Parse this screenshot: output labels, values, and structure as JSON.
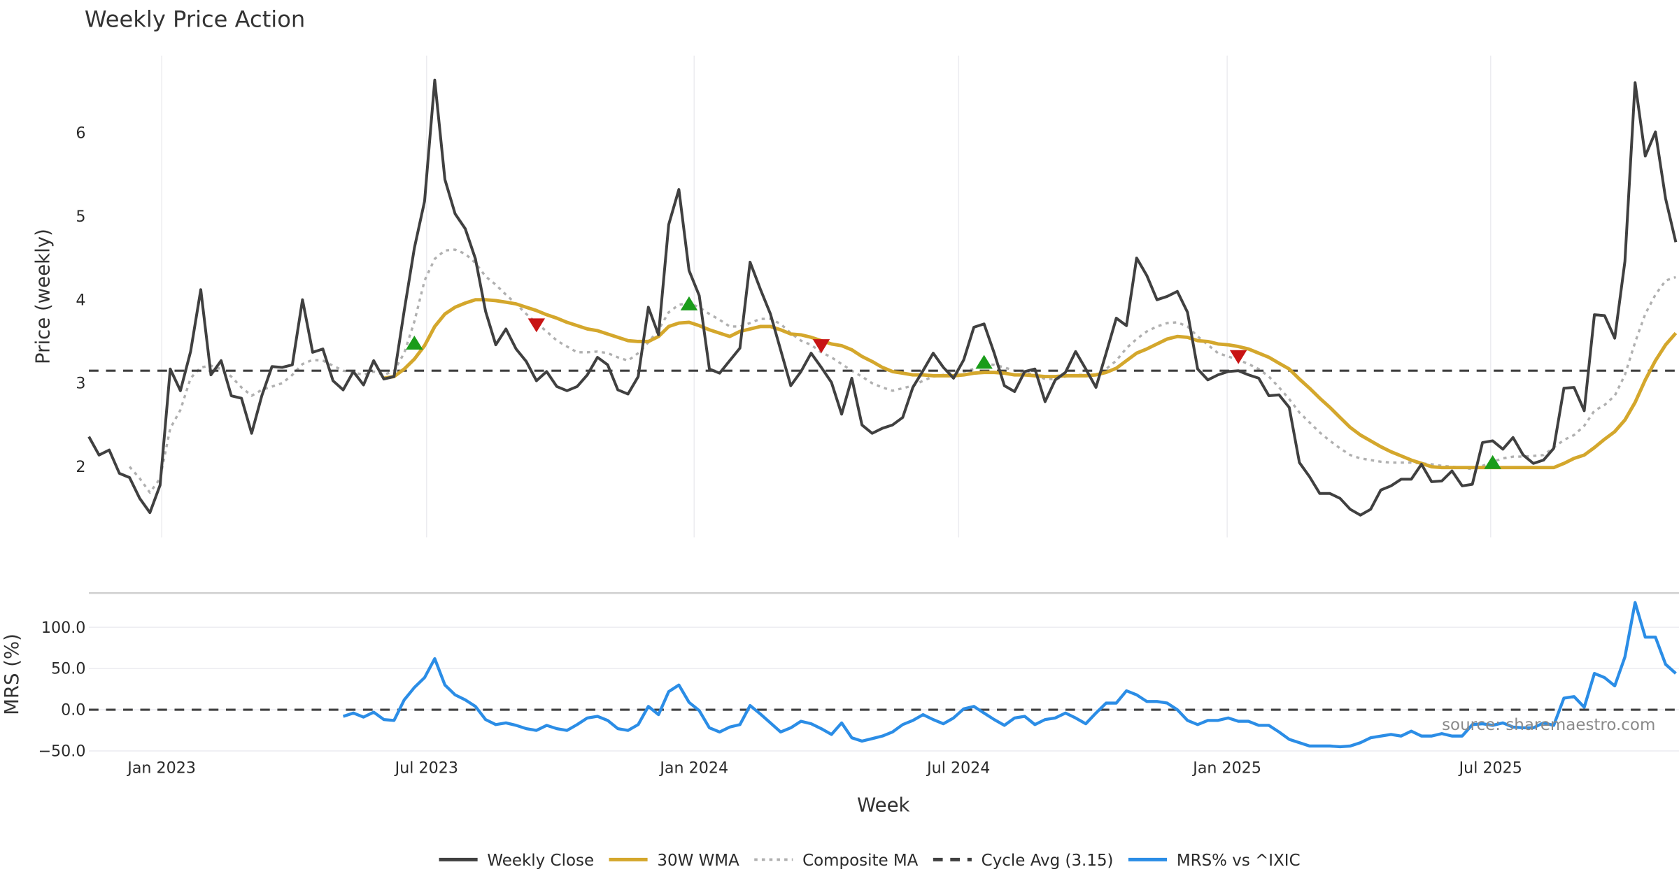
{
  "chart_data": {
    "type": "line",
    "title": "Weekly Price Action",
    "xlabel": "Week",
    "x_ticks": [
      {
        "label": "Jan 2023",
        "week_index": 7.16
      },
      {
        "label": "Jul 2023",
        "week_index": 33.2
      },
      {
        "label": "Jan 2024",
        "week_index": 59.5
      },
      {
        "label": "Jul 2024",
        "week_index": 85.5
      },
      {
        "label": "Jan 2025",
        "week_index": 111.9
      },
      {
        "label": "Jul 2025",
        "week_index": 137.8
      }
    ],
    "x_range": [
      0,
      156.3
    ],
    "panels": [
      {
        "id": "price",
        "ylabel": "Price (weekly)",
        "ylim": [
          1.2,
          6.85
        ],
        "y_ticks": [
          "2",
          "3",
          "4",
          "5",
          "6"
        ],
        "y_tick_values": [
          2,
          3,
          4,
          5,
          6
        ],
        "grid": "vertical",
        "series": [
          {
            "name": "Weekly Close",
            "color": "#404040",
            "style": "solid",
            "start_index": 0,
            "values": [
              2.36,
              2.14,
              2.2,
              1.92,
              1.87,
              1.62,
              1.45,
              1.78,
              3.17,
              2.91,
              3.38,
              4.12,
              3.1,
              3.27,
              2.85,
              2.82,
              2.4,
              2.85,
              3.2,
              3.19,
              3.22,
              4.0,
              3.37,
              3.41,
              3.03,
              2.92,
              3.14,
              2.98,
              3.27,
              3.05,
              3.08,
              3.87,
              4.62,
              5.18,
              6.63,
              5.44,
              5.03,
              4.85,
              4.49,
              3.86,
              3.46,
              3.65,
              3.41,
              3.26,
              3.03,
              3.14,
              2.96,
              2.91,
              2.96,
              3.1,
              3.31,
              3.22,
              2.92,
              2.87,
              3.08,
              3.91,
              3.58,
              4.9,
              5.32,
              4.35,
              4.05,
              3.17,
              3.12,
              3.27,
              3.42,
              4.45,
              4.13,
              3.83,
              3.4,
              2.97,
              3.14,
              3.36,
              3.19,
              3.01,
              2.63,
              3.06,
              2.5,
              2.4,
              2.46,
              2.5,
              2.59,
              2.95,
              3.15,
              3.36,
              3.19,
              3.06,
              3.28,
              3.67,
              3.71,
              3.36,
              2.97,
              2.9,
              3.14,
              3.17,
              2.78,
              3.04,
              3.13,
              3.38,
              3.17,
              2.95,
              3.36,
              3.78,
              3.69,
              4.5,
              4.29,
              4.0,
              4.04,
              4.1,
              3.85,
              3.17,
              3.04,
              3.1,
              3.14,
              3.15,
              3.1,
              3.06,
              2.85,
              2.86,
              2.71,
              2.05,
              1.88,
              1.68,
              1.68,
              1.62,
              1.49,
              1.42,
              1.49,
              1.72,
              1.77,
              1.85,
              1.85,
              2.03,
              1.82,
              1.83,
              1.95,
              1.77,
              1.79,
              2.29,
              2.31,
              2.21,
              2.35,
              2.14,
              2.04,
              2.08,
              2.22,
              2.94,
              2.95,
              2.67,
              3.82,
              3.81,
              3.54,
              4.46,
              6.6,
              5.72,
              6.01,
              5.21,
              4.69
            ]
          },
          {
            "name": "30W WMA",
            "color": "#d4a72c",
            "style": "solid",
            "start_index": 29,
            "values": [
              3.06,
              3.08,
              3.17,
              3.29,
              3.45,
              3.68,
              3.83,
              3.91,
              3.96,
              4.0,
              4.0,
              3.99,
              3.97,
              3.95,
              3.91,
              3.87,
              3.82,
              3.78,
              3.73,
              3.69,
              3.65,
              3.63,
              3.59,
              3.55,
              3.51,
              3.5,
              3.5,
              3.56,
              3.68,
              3.72,
              3.73,
              3.69,
              3.64,
              3.6,
              3.56,
              3.62,
              3.65,
              3.68,
              3.68,
              3.64,
              3.59,
              3.58,
              3.55,
              3.51,
              3.47,
              3.45,
              3.4,
              3.32,
              3.26,
              3.19,
              3.14,
              3.12,
              3.1,
              3.1,
              3.09,
              3.09,
              3.09,
              3.1,
              3.12,
              3.13,
              3.13,
              3.12,
              3.1,
              3.1,
              3.09,
              3.08,
              3.08,
              3.09,
              3.09,
              3.09,
              3.1,
              3.13,
              3.18,
              3.27,
              3.36,
              3.41,
              3.47,
              3.53,
              3.56,
              3.55,
              3.51,
              3.5,
              3.47,
              3.46,
              3.44,
              3.41,
              3.36,
              3.31,
              3.24,
              3.17,
              3.05,
              2.94,
              2.82,
              2.71,
              2.59,
              2.47,
              2.38,
              2.31,
              2.24,
              2.18,
              2.13,
              2.08,
              2.04,
              2.0,
              1.99,
              1.99,
              1.99,
              1.99,
              1.99,
              1.99,
              1.99,
              1.99,
              1.99,
              1.99,
              1.99,
              1.99,
              2.04,
              2.1,
              2.14,
              2.23,
              2.33,
              2.42,
              2.56,
              2.77,
              3.04,
              3.27,
              3.46,
              3.6
            ]
          },
          {
            "name": "Composite MA",
            "color": "#b0b0b0",
            "style": "dotted",
            "start_index": 4,
            "values": [
              2.0,
              1.86,
              1.69,
              1.86,
              2.46,
              2.68,
              3.06,
              3.19,
              3.21,
              3.17,
              3.08,
              2.95,
              2.85,
              2.92,
              2.96,
              3.0,
              3.1,
              3.23,
              3.28,
              3.27,
              3.21,
              3.15,
              3.13,
              3.1,
              3.14,
              3.1,
              3.15,
              3.36,
              3.74,
              4.23,
              4.49,
              4.59,
              4.6,
              4.55,
              4.44,
              4.28,
              4.18,
              4.06,
              3.95,
              3.83,
              3.72,
              3.62,
              3.51,
              3.44,
              3.37,
              3.37,
              3.38,
              3.36,
              3.31,
              3.27,
              3.36,
              3.49,
              3.64,
              3.85,
              3.94,
              3.96,
              3.91,
              3.83,
              3.76,
              3.68,
              3.68,
              3.72,
              3.77,
              3.77,
              3.71,
              3.6,
              3.51,
              3.46,
              3.37,
              3.31,
              3.23,
              3.15,
              3.08,
              3.0,
              2.95,
              2.91,
              2.94,
              2.97,
              3.03,
              3.08,
              3.1,
              3.13,
              3.14,
              3.17,
              3.23,
              3.22,
              3.19,
              3.15,
              3.13,
              3.1,
              3.05,
              3.05,
              3.08,
              3.1,
              3.1,
              3.1,
              3.17,
              3.27,
              3.42,
              3.53,
              3.62,
              3.68,
              3.72,
              3.73,
              3.68,
              3.56,
              3.46,
              3.36,
              3.32,
              3.28,
              3.23,
              3.17,
              3.08,
              2.95,
              2.81,
              2.65,
              2.53,
              2.41,
              2.31,
              2.22,
              2.14,
              2.1,
              2.08,
              2.06,
              2.05,
              2.05,
              2.05,
              2.04,
              2.03,
              2.01,
              2.0,
              1.99,
              1.97,
              2.01,
              2.06,
              2.1,
              2.12,
              2.12,
              2.13,
              2.14,
              2.23,
              2.32,
              2.38,
              2.49,
              2.67,
              2.74,
              2.85,
              3.1,
              3.49,
              3.83,
              4.06,
              4.23,
              4.27
            ]
          },
          {
            "name": "Cycle Avg (3.15)",
            "color": "#404040",
            "style": "dashed",
            "constant": 3.15
          }
        ],
        "signals": [
          {
            "type": "buy",
            "week_index": 32,
            "value": 3.48,
            "color": "#1a9c1a"
          },
          {
            "type": "sell",
            "week_index": 44,
            "value": 3.7,
            "color": "#c81414"
          },
          {
            "type": "buy",
            "week_index": 59,
            "value": 3.95,
            "color": "#1a9c1a"
          },
          {
            "type": "sell",
            "week_index": 72,
            "value": 3.45,
            "color": "#c81414"
          },
          {
            "type": "buy",
            "week_index": 88,
            "value": 3.25,
            "color": "#1a9c1a"
          },
          {
            "type": "sell",
            "week_index": 113,
            "value": 3.32,
            "color": "#c81414"
          },
          {
            "type": "buy",
            "week_index": 138,
            "value": 2.05,
            "color": "#1a9c1a"
          }
        ]
      },
      {
        "id": "mrs",
        "ylabel": "MRS (%)",
        "ylim": [
          -55,
          140
        ],
        "y_ticks": [
          "100.0",
          "50.0",
          "0.0",
          "−50.0"
        ],
        "y_tick_values": [
          100,
          50,
          0,
          -50
        ],
        "grid": "horizontal",
        "series": [
          {
            "name": "MRS% vs ^IXIC",
            "color": "#2b8de6",
            "style": "solid",
            "start_index": 25,
            "values": [
              -8,
              -4,
              -9,
              -3,
              -12,
              -13,
              12,
              27,
              39,
              62,
              30,
              18,
              12,
              4,
              -12,
              -18,
              -16,
              -19,
              -23,
              -25,
              -19,
              -23,
              -25,
              -18,
              -10,
              -8,
              -13,
              -23,
              -25,
              -18,
              4,
              -6,
              22,
              30,
              9,
              -1,
              -22,
              -27,
              -21,
              -18,
              5,
              -5,
              -16,
              -27,
              -22,
              -14,
              -17,
              -23,
              -30,
              -16,
              -34,
              -38,
              -35,
              -32,
              -27,
              -18,
              -13,
              -6,
              -12,
              -17,
              -10,
              1,
              4,
              -4,
              -12,
              -19,
              -10,
              -8,
              -18,
              -12,
              -10,
              -4,
              -10,
              -17,
              -4,
              8,
              8,
              23,
              18,
              10,
              10,
              8,
              0,
              -13,
              -18,
              -13,
              -13,
              -10,
              -14,
              -14,
              -19,
              -19,
              -27,
              -36,
              -40,
              -44,
              -44,
              -44,
              -45,
              -44,
              -40,
              -34,
              -32,
              -30,
              -32,
              -26,
              -32,
              -32,
              -29,
              -32,
              -32,
              -18,
              -17,
              -19,
              -16,
              -21,
              -22,
              -22,
              -16,
              -19,
              14,
              16,
              3,
              44,
              39,
              29,
              64,
              130,
              88,
              88,
              55,
              44
            ]
          },
          {
            "name": "MRS zero",
            "color": "#404040",
            "style": "dashed",
            "constant": 0
          }
        ],
        "annotation": "source: sharemaestro.com"
      }
    ],
    "legend": {
      "placement": "bottom-center",
      "entries": [
        {
          "label": "Weekly Close",
          "color": "#404040",
          "style": "solid"
        },
        {
          "label": "30W WMA",
          "color": "#d4a72c",
          "style": "solid"
        },
        {
          "label": "Composite MA",
          "color": "#b0b0b0",
          "style": "dotted"
        },
        {
          "label": "Cycle Avg (3.15)",
          "color": "#404040",
          "style": "dashed"
        },
        {
          "label": "MRS% vs ^IXIC",
          "color": "#2b8de6",
          "style": "solid"
        }
      ]
    }
  }
}
